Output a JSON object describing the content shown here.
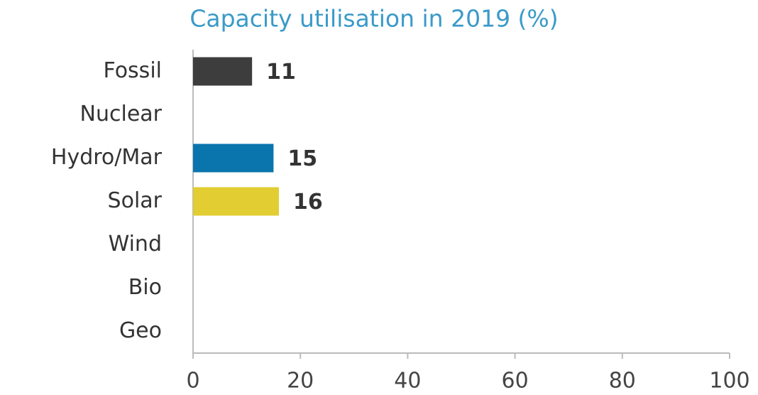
{
  "chart_data": {
    "type": "bar",
    "orientation": "horizontal",
    "title": "Capacity utilisation in 2019 (%)",
    "categories": [
      "Fossil",
      "Nuclear",
      "Hydro/Mar",
      "Solar",
      "Wind",
      "Bio",
      "Geo"
    ],
    "values": [
      11,
      null,
      15,
      16,
      null,
      null,
      null
    ],
    "colors": [
      "#3d3d3d",
      null,
      "#0a75ad",
      "#e2cd32",
      null,
      null,
      null
    ],
    "xlim": [
      0,
      100
    ],
    "xticks": [
      0,
      20,
      40,
      60,
      80,
      100
    ],
    "grid": false
  }
}
